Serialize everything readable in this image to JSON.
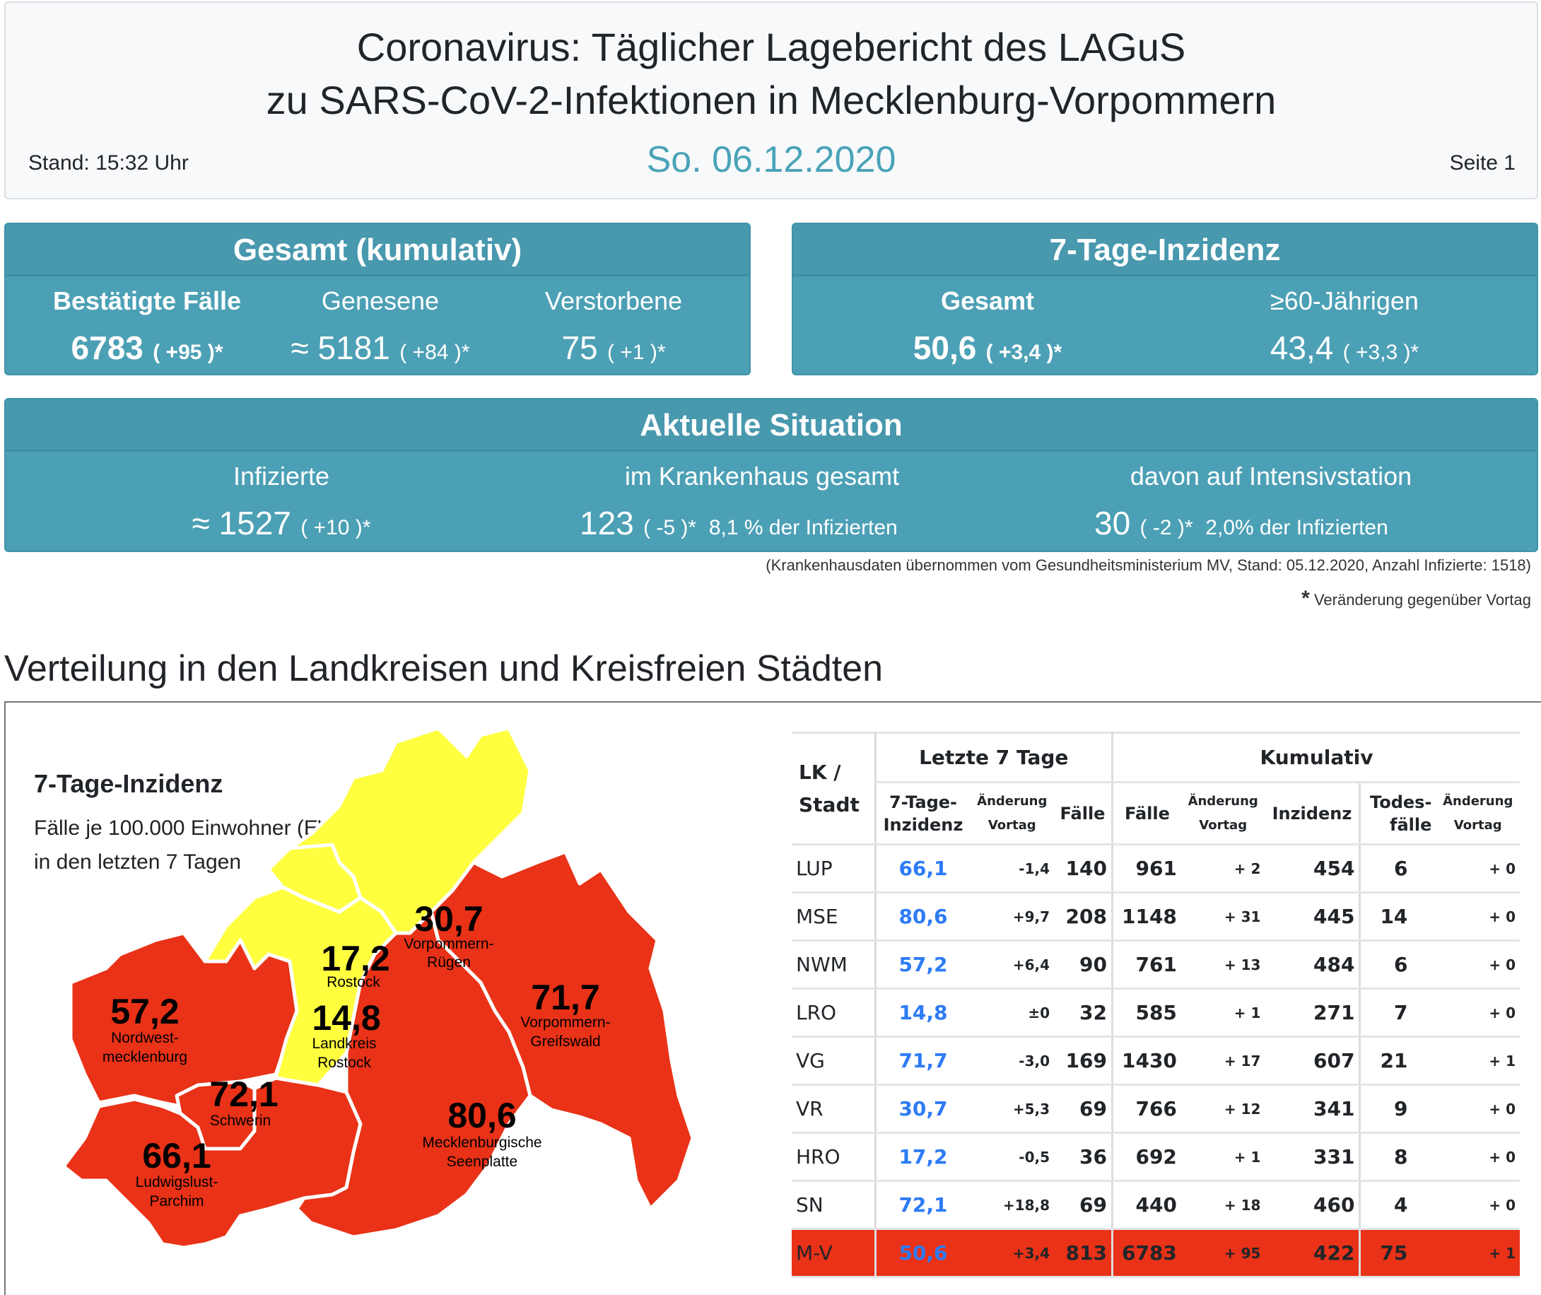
{
  "header": {
    "title_line1": "Coronavirus: Täglicher Lagebericht des LAGuS",
    "title_line2": "zu SARS-CoV-2-Infektionen in Mecklenburg-Vorpommern",
    "stand": "Stand: 15:32 Uhr",
    "date": "So. 06.12.2020",
    "page": "Seite 1"
  },
  "gesamt": {
    "title": "Gesamt (kumulativ)",
    "items": [
      {
        "label": "Bestätigte Fälle",
        "value": "6783",
        "change": "( +95 )*"
      },
      {
        "label": "Genesene",
        "value": "≈ 5181",
        "change": "( +84 )*"
      },
      {
        "label": "Verstorbene",
        "value": "75",
        "change": "( +1 )*"
      }
    ]
  },
  "inzidenz": {
    "title": "7-Tage-Inzidenz",
    "items": [
      {
        "label": "Gesamt",
        "value": "50,6",
        "change": "( +3,4 )*"
      },
      {
        "label": "≥60-Jährigen",
        "value": "43,4",
        "change": "( +3,3 )*"
      }
    ]
  },
  "aktuell": {
    "title": "Aktuelle Situation",
    "items": [
      {
        "label": "Infizierte",
        "value": "≈ 1527",
        "change": "( +10 )*",
        "extra": ""
      },
      {
        "label": "im Krankenhaus gesamt",
        "value": "123",
        "change": "( -5 )*",
        "extra": "8,1 % der Infizierten"
      },
      {
        "label": "davon auf Intensivstation",
        "value": "30",
        "change": "( -2 )*",
        "extra": "2,0% der Infizierten"
      }
    ]
  },
  "notes": {
    "hospital_source": "(Krankenhausdaten übernommen vom Gesundheitsministerium MV, Stand: 05.12.2020, Anzahl Infizierte: 1518)",
    "asterisk": "*",
    "asterisk_text": "Veränderung gegenüber Vortag"
  },
  "section": {
    "title": "Verteilung in den Landkreisen und Kreisfreien Städten"
  },
  "map": {
    "legend_title": "7-Tage-Inzidenz",
    "legend_line1": "Fälle je 100.000 Einwohner (EW)",
    "legend_line2": "in den letzten 7 Tagen",
    "colors": {
      "high": "#e93217",
      "low": "#ffff40"
    },
    "regions": [
      {
        "id": "NWM",
        "value": "57,2",
        "name1": "Nordwest-",
        "name2": "mecklenburg",
        "level": "high"
      },
      {
        "id": "SN",
        "value": "72,1",
        "name1": "Schwerin",
        "name2": "",
        "level": "high"
      },
      {
        "id": "LUP",
        "value": "66,1",
        "name1": "Ludwigslust-",
        "name2": "Parchim",
        "level": "high"
      },
      {
        "id": "HRO",
        "value": "17,2",
        "name1": "Rostock",
        "name2": "",
        "level": "low"
      },
      {
        "id": "LRO",
        "value": "14,8",
        "name1": "Landkreis",
        "name2": "Rostock",
        "level": "low"
      },
      {
        "id": "VR",
        "value": "30,7",
        "name1": "Vorpommern-",
        "name2": "Rügen",
        "level": "low"
      },
      {
        "id": "VG",
        "value": "71,7",
        "name1": "Vorpommern-",
        "name2": "Greifswald",
        "level": "high"
      },
      {
        "id": "MSE",
        "value": "80,6",
        "name1": "Mecklenburgische",
        "name2": "Seenplatte",
        "level": "high"
      }
    ]
  },
  "table": {
    "headers": {
      "lk": "LK /",
      "stadt": "Stadt",
      "group1": "Letzte 7 Tage",
      "group2": "Kumulativ",
      "inz1": "7-Tage-",
      "inz2": "Inzidenz",
      "aend1": "Änderung",
      "aend2": "Vortag",
      "faelle": "Fälle",
      "inzidenz": "Inzidenz",
      "todes1": "Todes-",
      "todes2": "fälle"
    },
    "rows": [
      {
        "name": "LUP",
        "inz": "66,1",
        "inz_chg": "-1,4",
        "cases7": "140",
        "cases": "961",
        "cases_chg": "+ 2",
        "cum_inz": "454",
        "deaths": "6",
        "deaths_chg": "+ 0"
      },
      {
        "name": "MSE",
        "inz": "80,6",
        "inz_chg": "+9,7",
        "cases7": "208",
        "cases": "1148",
        "cases_chg": "+ 31",
        "cum_inz": "445",
        "deaths": "14",
        "deaths_chg": "+ 0"
      },
      {
        "name": "NWM",
        "inz": "57,2",
        "inz_chg": "+6,4",
        "cases7": "90",
        "cases": "761",
        "cases_chg": "+ 13",
        "cum_inz": "484",
        "deaths": "6",
        "deaths_chg": "+ 0"
      },
      {
        "name": "LRO",
        "inz": "14,8",
        "inz_chg": "±0",
        "cases7": "32",
        "cases": "585",
        "cases_chg": "+ 1",
        "cum_inz": "271",
        "deaths": "7",
        "deaths_chg": "+ 0"
      },
      {
        "name": "VG",
        "inz": "71,7",
        "inz_chg": "-3,0",
        "cases7": "169",
        "cases": "1430",
        "cases_chg": "+ 17",
        "cum_inz": "607",
        "deaths": "21",
        "deaths_chg": "+ 1"
      },
      {
        "name": "VR",
        "inz": "30,7",
        "inz_chg": "+5,3",
        "cases7": "69",
        "cases": "766",
        "cases_chg": "+ 12",
        "cum_inz": "341",
        "deaths": "9",
        "deaths_chg": "+ 0"
      },
      {
        "name": "HRO",
        "inz": "17,2",
        "inz_chg": "-0,5",
        "cases7": "36",
        "cases": "692",
        "cases_chg": "+ 1",
        "cum_inz": "331",
        "deaths": "8",
        "deaths_chg": "+ 0"
      },
      {
        "name": "SN",
        "inz": "72,1",
        "inz_chg": "+18,8",
        "cases7": "69",
        "cases": "440",
        "cases_chg": "+ 18",
        "cum_inz": "460",
        "deaths": "4",
        "deaths_chg": "+ 0"
      }
    ],
    "total": {
      "name": "M-V",
      "inz": "50,6",
      "inz_chg": "+3,4",
      "cases7": "813",
      "cases": "6783",
      "cases_chg": "+ 95",
      "cum_inz": "422",
      "deaths": "75",
      "deaths_chg": "+ 1"
    }
  }
}
